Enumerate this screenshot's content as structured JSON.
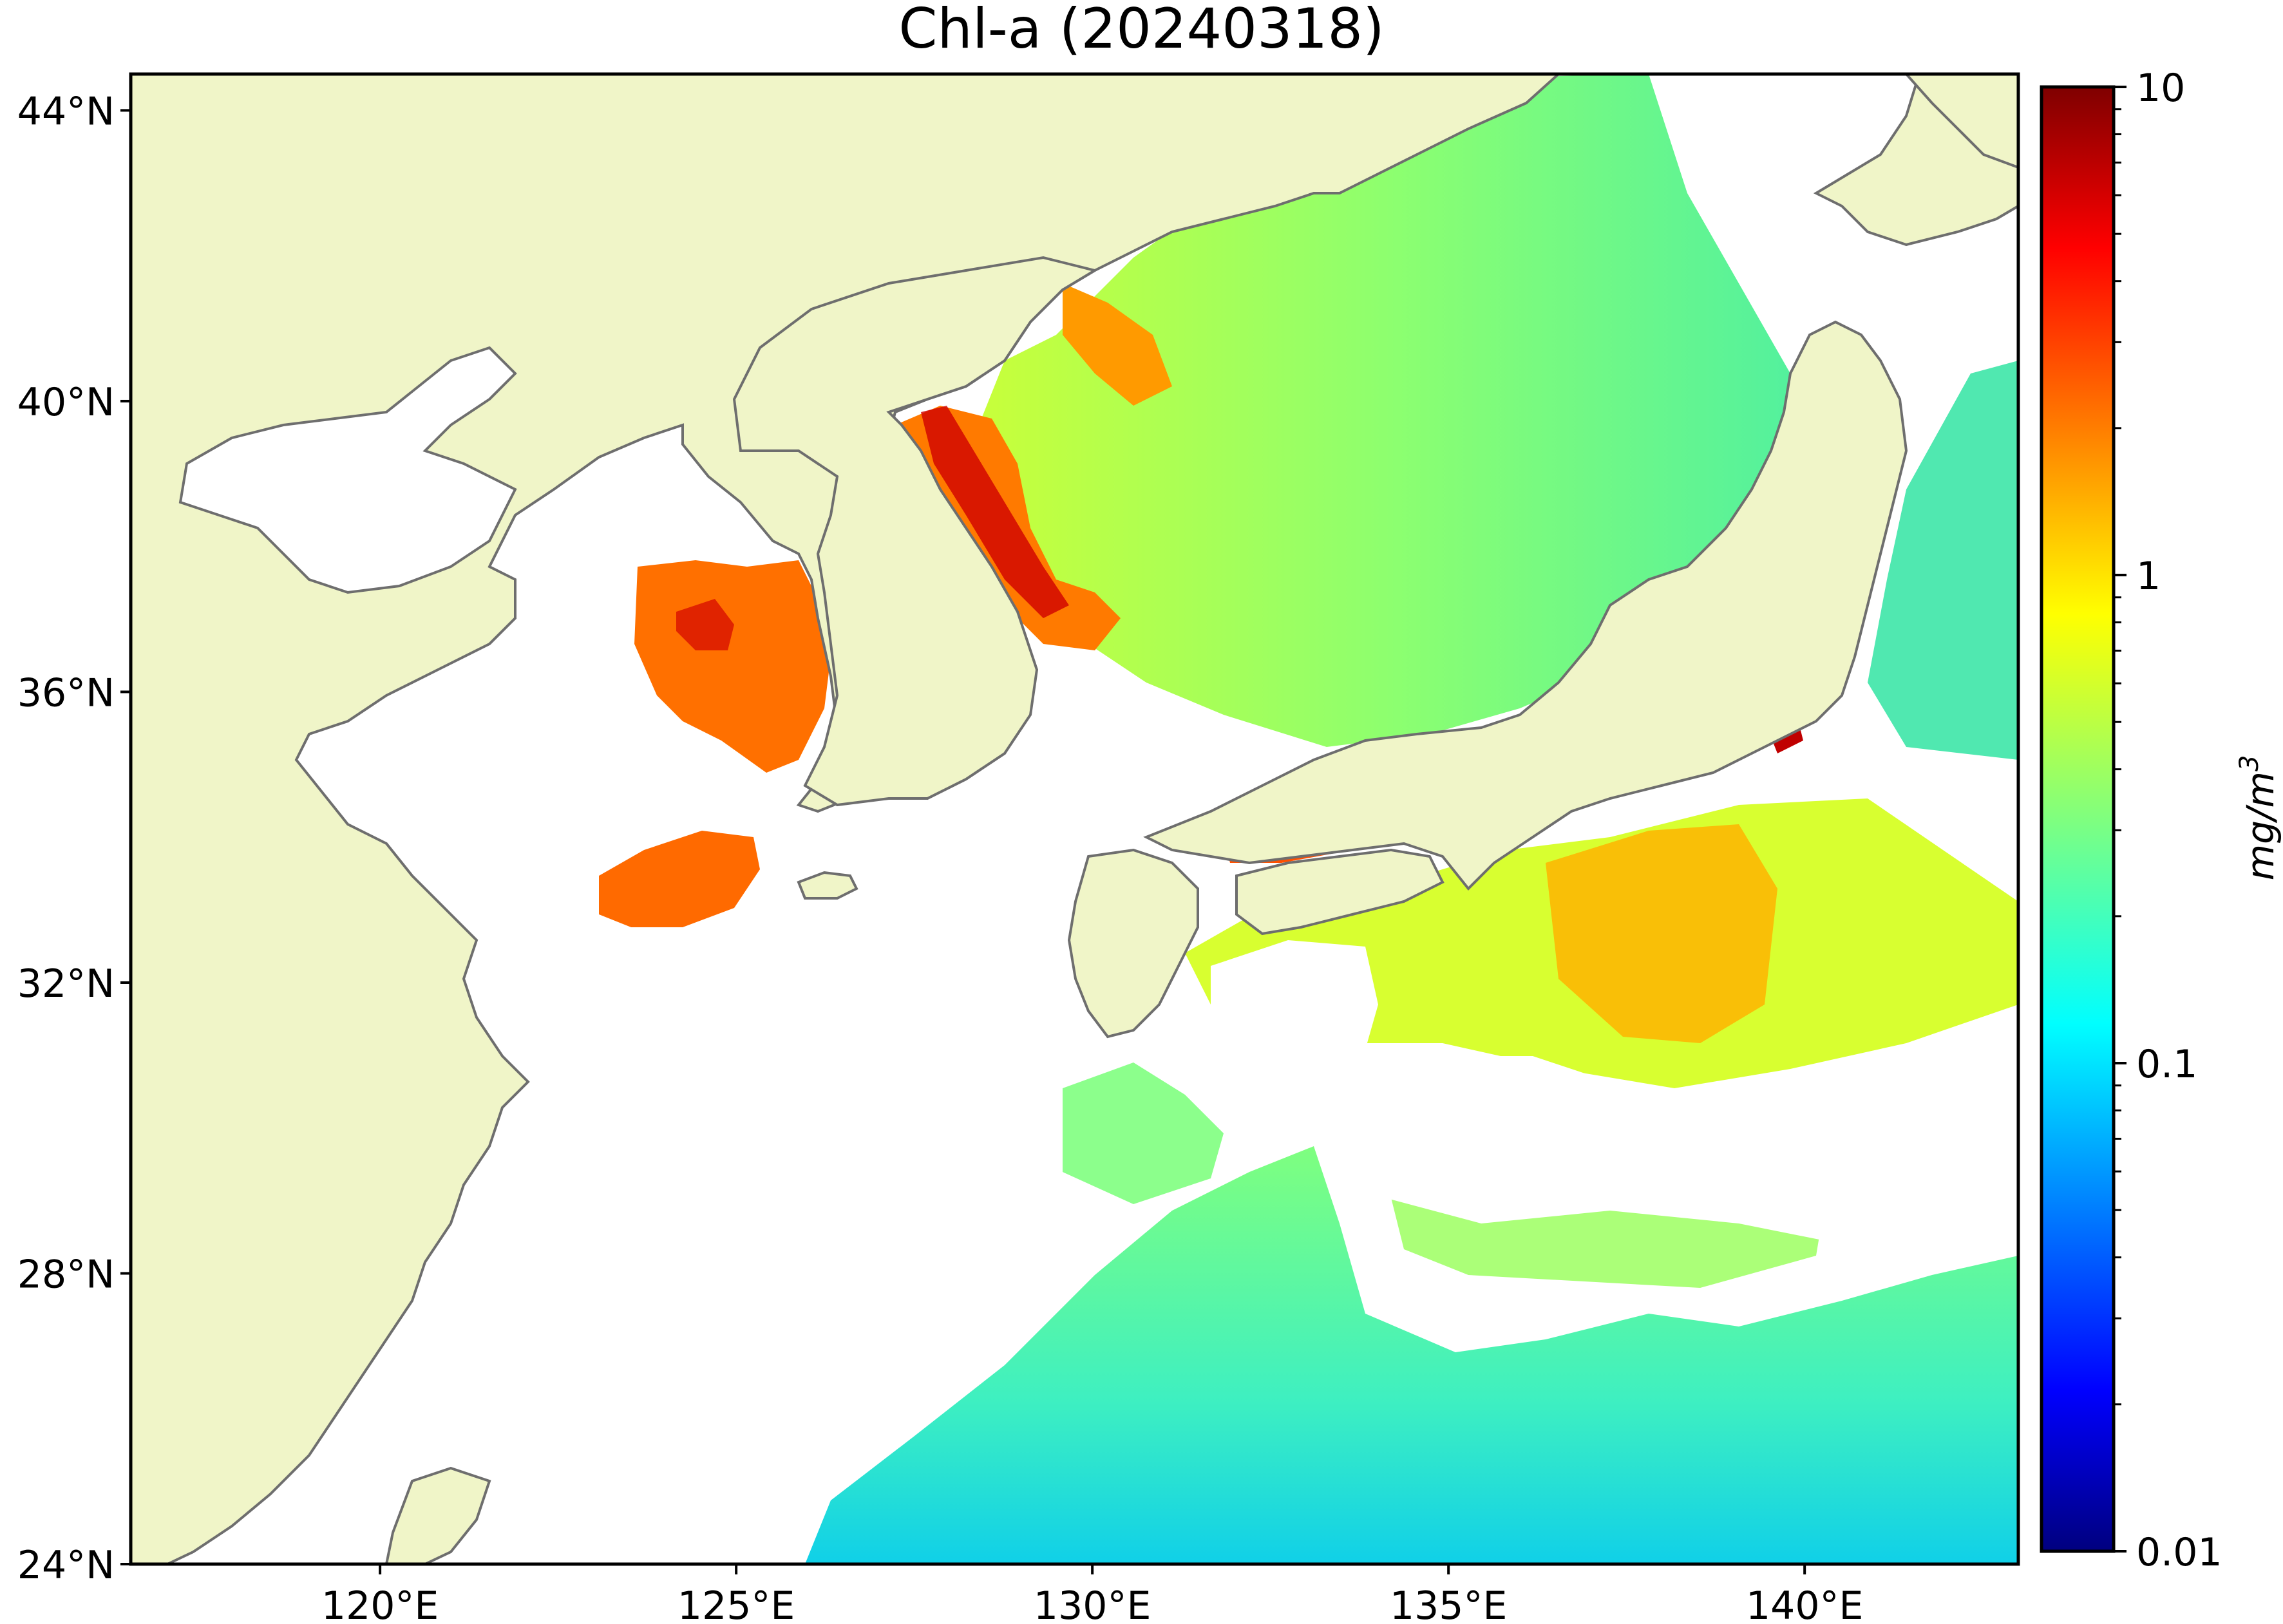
{
  "title": "Chl-a (20240318)",
  "map": {
    "type": "heatmap",
    "lon_range": [
      116.5,
      143.0
    ],
    "lat_range": [
      24.0,
      44.5
    ],
    "x_ticks": [
      {
        "value": 120,
        "label": "120°E"
      },
      {
        "value": 125,
        "label": "125°E"
      },
      {
        "value": 130,
        "label": "130°E"
      },
      {
        "value": 135,
        "label": "135°E"
      },
      {
        "value": 140,
        "label": "140°E"
      }
    ],
    "y_ticks": [
      {
        "value": 44,
        "label": "44°N"
      },
      {
        "value": 40,
        "label": "40°N"
      },
      {
        "value": 36,
        "label": "36°N"
      },
      {
        "value": 32,
        "label": "32°N"
      },
      {
        "value": 28,
        "label": "28°N"
      },
      {
        "value": 24,
        "label": "24°N"
      }
    ],
    "land_color": "#f0f5c8",
    "coast_color": "#6e6e6e",
    "nodata_color": "#ffffff"
  },
  "colorbar": {
    "scale": "log",
    "range": [
      0.01,
      10
    ],
    "colormap": "jet",
    "ticks": [
      {
        "value": 10,
        "label": "10"
      },
      {
        "value": 1,
        "label": "1"
      },
      {
        "value": 0.1,
        "label": "0.1"
      },
      {
        "value": 0.01,
        "label": "0.01"
      }
    ],
    "unit": "mg/m",
    "unit_exponent": "3"
  }
}
